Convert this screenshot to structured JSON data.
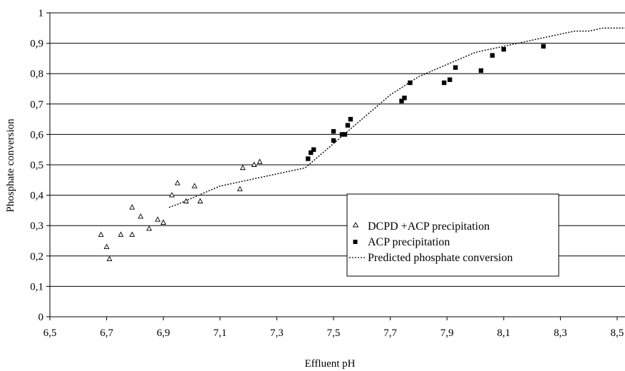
{
  "chart_data": {
    "type": "scatter",
    "xlabel": "Effluent pH",
    "ylabel": "Phosphate conversion",
    "xlim": [
      6.5,
      8.5
    ],
    "ylim": [
      0,
      1
    ],
    "x_ticks": [
      6.5,
      6.7,
      6.9,
      7.1,
      7.3,
      7.5,
      7.7,
      7.9,
      8.1,
      8.3,
      8.5
    ],
    "x_tick_labels": [
      "6,5",
      "6,7",
      "6,9",
      "7,1",
      "7,3",
      "7,5",
      "7,7",
      "7,9",
      "8,1",
      "8,3",
      "8,5"
    ],
    "y_ticks": [
      0,
      0.1,
      0.2,
      0.3,
      0.4,
      0.5,
      0.6,
      0.7,
      0.8,
      0.9,
      1
    ],
    "y_tick_labels": [
      "0",
      "0,1",
      "0,2",
      "0,3",
      "0,4",
      "0,5",
      "0,6",
      "0,7",
      "0,8",
      "0,9",
      "1"
    ],
    "grid": "horizontal",
    "legend_position": "center-right",
    "series": [
      {
        "name": "DCPD +ACP precipitation",
        "marker": "open-triangle",
        "color": "#000000",
        "x": [
          6.68,
          6.7,
          6.71,
          6.75,
          6.79,
          6.79,
          6.82,
          6.85,
          6.88,
          6.9,
          6.9,
          6.93,
          6.95,
          6.98,
          7.01,
          7.03,
          7.17,
          7.18,
          7.22,
          7.24
        ],
        "y": [
          0.27,
          0.23,
          0.19,
          0.27,
          0.27,
          0.36,
          0.33,
          0.29,
          0.32,
          0.31,
          0.31,
          0.4,
          0.44,
          0.38,
          0.43,
          0.38,
          0.42,
          0.49,
          0.5,
          0.51
        ]
      },
      {
        "name": "ACP precipitation",
        "marker": "filled-square",
        "color": "#000000",
        "x": [
          7.41,
          7.42,
          7.43,
          7.5,
          7.5,
          7.53,
          7.54,
          7.55,
          7.56,
          7.74,
          7.75,
          7.77,
          7.89,
          7.91,
          7.93,
          8.02,
          8.06,
          8.1,
          8.24
        ],
        "y": [
          0.52,
          0.54,
          0.55,
          0.58,
          0.61,
          0.6,
          0.6,
          0.63,
          0.65,
          0.71,
          0.72,
          0.77,
          0.77,
          0.78,
          0.82,
          0.81,
          0.86,
          0.88,
          0.89
        ]
      },
      {
        "name": "Predicted phosphate conversion",
        "line_style": "dotted",
        "color": "#000000",
        "x": [
          6.92,
          6.95,
          7.0,
          7.05,
          7.1,
          7.15,
          7.2,
          7.25,
          7.3,
          7.35,
          7.4,
          7.45,
          7.5,
          7.55,
          7.6,
          7.65,
          7.7,
          7.75,
          7.8,
          7.85,
          7.9,
          7.95,
          8.0,
          8.05,
          8.1,
          8.15,
          8.2,
          8.25,
          8.3,
          8.35,
          8.4,
          8.45,
          8.5,
          8.55
        ],
        "y": [
          0.36,
          0.37,
          0.39,
          0.41,
          0.43,
          0.44,
          0.45,
          0.46,
          0.47,
          0.48,
          0.49,
          0.53,
          0.57,
          0.61,
          0.65,
          0.69,
          0.73,
          0.76,
          0.79,
          0.81,
          0.83,
          0.85,
          0.87,
          0.88,
          0.89,
          0.9,
          0.91,
          0.92,
          0.93,
          0.94,
          0.94,
          0.95,
          0.95,
          0.95
        ]
      }
    ]
  }
}
